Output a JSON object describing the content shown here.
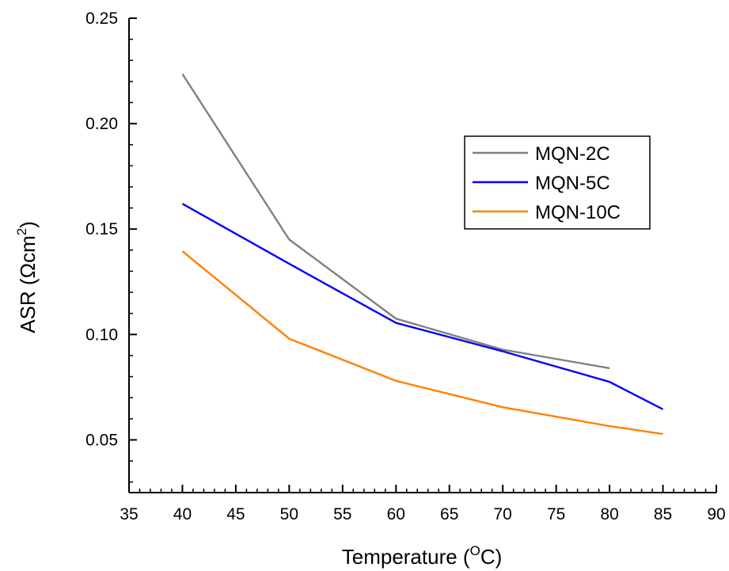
{
  "chart_data": {
    "type": "line",
    "title": "",
    "xlabel": {
      "main": "Temperature (",
      "sup": "O",
      "tail": "C)"
    },
    "ylabel": {
      "main": "ASR (Ωcm",
      "sup": "2",
      "tail": ")"
    },
    "xlim": [
      35,
      90
    ],
    "ylim": [
      0.025,
      0.25
    ],
    "x_ticks": [
      35,
      40,
      45,
      50,
      55,
      60,
      65,
      70,
      75,
      80,
      85,
      90
    ],
    "x_tick_labels": [
      "35",
      "40",
      "45",
      "50",
      "55",
      "60",
      "65",
      "70",
      "75",
      "80",
      "85",
      "90"
    ],
    "y_ticks": [
      0.05,
      0.1,
      0.15,
      0.2,
      0.25
    ],
    "y_tick_labels": [
      "0.05",
      "0.10",
      "0.15",
      "0.20",
      "0.25"
    ],
    "grid": false,
    "legend_position": "upper-right",
    "series": [
      {
        "name": "MQN-2C",
        "color": "#808080",
        "x": [
          40,
          50,
          60,
          70,
          80
        ],
        "y": [
          0.2235,
          0.145,
          0.1075,
          0.0928,
          0.084
        ]
      },
      {
        "name": "MQN-5C",
        "color": "#0000ff",
        "x": [
          40,
          50,
          60,
          70,
          80,
          85
        ],
        "y": [
          0.162,
          0.1335,
          0.1055,
          0.092,
          0.0775,
          0.0645
        ]
      },
      {
        "name": "MQN-10C",
        "color": "#ff8000",
        "x": [
          40,
          50,
          60,
          70,
          80,
          85
        ],
        "y": [
          0.1395,
          0.098,
          0.078,
          0.0655,
          0.0565,
          0.0528
        ]
      }
    ]
  }
}
